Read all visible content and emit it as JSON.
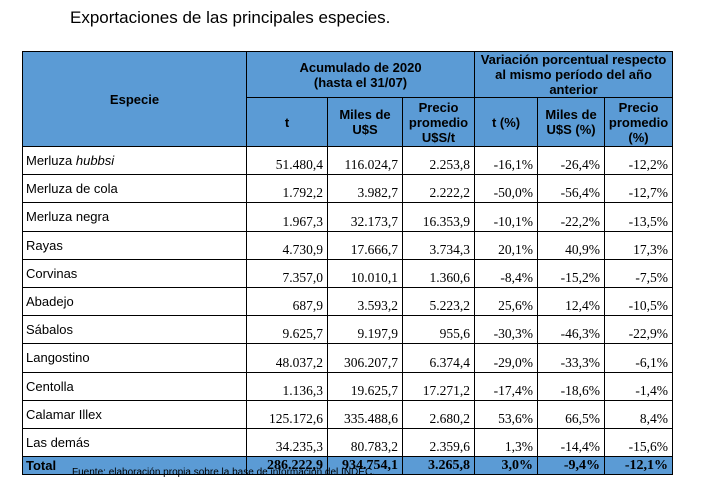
{
  "title": "Exportaciones de las principales especies.",
  "header": {
    "especie": "Especie",
    "acumulado": "Acumulado de 2020 (hasta el 31/07)",
    "variacion": "Variación porcentual respecto al mismo período del año anterior",
    "t": "t",
    "miles": "Miles de U$S",
    "precio": "Precio promedio U$S/t",
    "t_pct": "t (%)",
    "miles_pct": "Miles de U$S (%)",
    "precio_pct": "Precio promedio (%)"
  },
  "rows": [
    {
      "especie": "Merluza ",
      "especie_italic": "hubbsi",
      "t": "51.480,4",
      "miles": "116.024,7",
      "precio": "2.253,8",
      "t_pct": "-16,1%",
      "miles_pct": "-26,4%",
      "precio_pct": "-12,2%"
    },
    {
      "especie": "Merluza de cola",
      "t": "1.792,2",
      "miles": "3.982,7",
      "precio": "2.222,2",
      "t_pct": "-50,0%",
      "miles_pct": "-56,4%",
      "precio_pct": "-12,7%"
    },
    {
      "especie": "Merluza negra",
      "t": "1.967,3",
      "miles": "32.173,7",
      "precio": "16.353,9",
      "t_pct": "-10,1%",
      "miles_pct": "-22,2%",
      "precio_pct": "-13,5%"
    },
    {
      "especie": "Rayas",
      "t": "4.730,9",
      "miles": "17.666,7",
      "precio": "3.734,3",
      "t_pct": "20,1%",
      "miles_pct": "40,9%",
      "precio_pct": "17,3%"
    },
    {
      "especie": "Corvinas",
      "t": "7.357,0",
      "miles": "10.010,1",
      "precio": "1.360,6",
      "t_pct": "-8,4%",
      "miles_pct": "-15,2%",
      "precio_pct": "-7,5%"
    },
    {
      "especie": "Abadejo",
      "t": "687,9",
      "miles": "3.593,2",
      "precio": "5.223,2",
      "t_pct": "25,6%",
      "miles_pct": "12,4%",
      "precio_pct": "-10,5%"
    },
    {
      "especie": "Sábalos",
      "t": "9.625,7",
      "miles": "9.197,9",
      "precio": "955,6",
      "t_pct": "-30,3%",
      "miles_pct": "-46,3%",
      "precio_pct": "-22,9%"
    },
    {
      "especie": "Langostino",
      "t": "48.037,2",
      "miles": "306.207,7",
      "precio": "6.374,4",
      "t_pct": "-29,0%",
      "miles_pct": "-33,3%",
      "precio_pct": "-6,1%"
    },
    {
      "especie": "Centolla",
      "t": "1.136,3",
      "miles": "19.625,7",
      "precio": "17.271,2",
      "t_pct": "-17,4%",
      "miles_pct": "-18,6%",
      "precio_pct": "-1,4%"
    },
    {
      "especie": "Calamar Illex",
      "t": "125.172,6",
      "miles": "335.488,6",
      "precio": "2.680,2",
      "t_pct": "53,6%",
      "miles_pct": "66,5%",
      "precio_pct": "8,4%"
    },
    {
      "especie": "Las demás",
      "t": "34.235,3",
      "miles": "80.783,2",
      "precio": "2.359,6",
      "t_pct": "1,3%",
      "miles_pct": "-14,4%",
      "precio_pct": "-15,6%"
    }
  ],
  "total": {
    "especie": "Total",
    "t": "286.222,9",
    "miles": "934.754,1",
    "precio": "3.265,8",
    "t_pct": "3,0%",
    "miles_pct": "-9,4%",
    "precio_pct": "-12,1%"
  },
  "source": "Fuente: elaboración propia sobre la base de información del INDEC."
}
